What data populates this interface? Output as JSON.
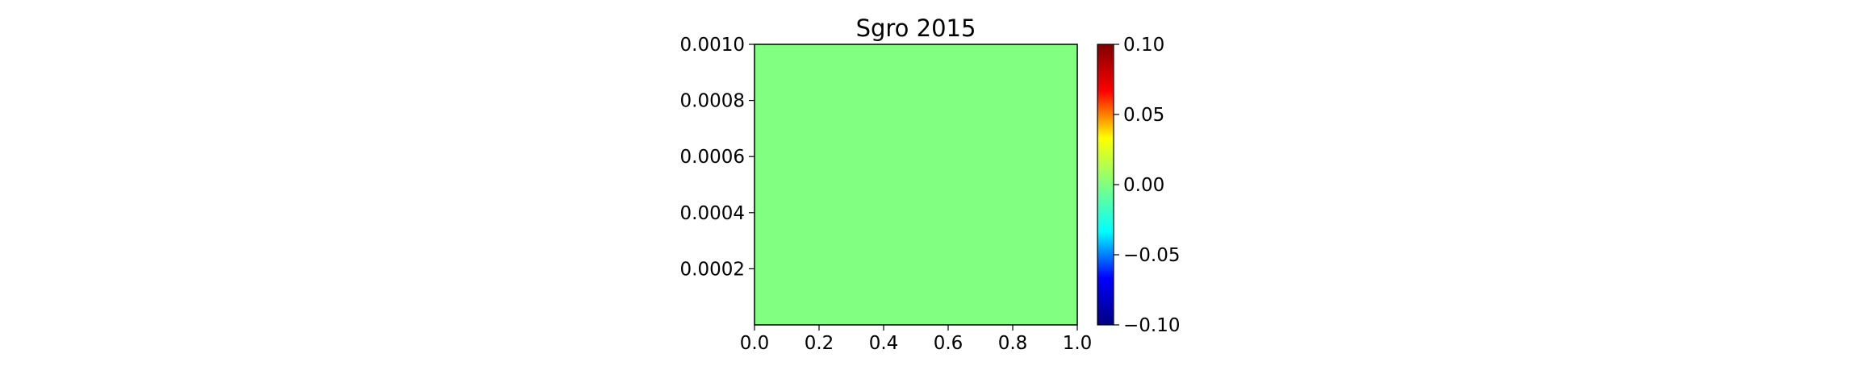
{
  "chart_data": {
    "type": "heatmap",
    "title": "Sgro 2015",
    "xlabel": "",
    "ylabel": "",
    "xlim": [
      0.0,
      1.0
    ],
    "ylim": [
      0.0,
      0.001
    ],
    "x_ticks": [
      "0.0",
      "0.2",
      "0.4",
      "0.6",
      "0.8",
      "1.0"
    ],
    "y_ticks": [
      "0.0002",
      "0.0004",
      "0.0006",
      "0.0008",
      "0.0010"
    ],
    "values": [
      [
        0.0
      ]
    ],
    "fill_color": "#80ff80",
    "grid": false,
    "colorbar": {
      "colormap": "jet",
      "range": [
        -0.1,
        0.1
      ],
      "ticks": [
        "0.10",
        "0.05",
        "0.00",
        "−0.05",
        "−0.10"
      ],
      "colors": [
        "#000080",
        "#0000ff",
        "#00ffff",
        "#80ff80",
        "#ffff00",
        "#ff0000",
        "#800000"
      ]
    }
  }
}
